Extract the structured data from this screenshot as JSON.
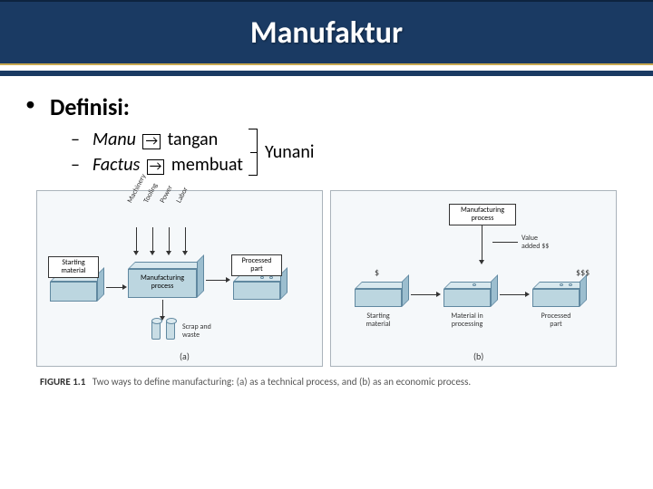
{
  "header": {
    "title": "Manufaktur"
  },
  "bullet": {
    "text": "Definisi:"
  },
  "sub": {
    "items": [
      {
        "dash": "–",
        "word": "Manu",
        "arrow": "→",
        "meaning": "tangan"
      },
      {
        "dash": "–",
        "word": "Factus",
        "arrow": "→",
        "meaning": "membuat"
      }
    ],
    "bracket_label": "Yunani"
  },
  "figure": {
    "caption_bold": "FIGURE 1.1",
    "caption_text": "Two ways to define manufacturing: (a) as a technical process, and (b) as an economic process.",
    "panel_a": {
      "letter": "(a)",
      "start": "Starting\nmaterial",
      "process": "Manufacturing\nprocess",
      "processed": "Processed\npart",
      "scrap": "Scrap and\nwaste",
      "inputs": [
        "Machinery",
        "Tooling",
        "Power",
        "Labor"
      ]
    },
    "panel_b": {
      "letter": "(b)",
      "process": "Manufacturing\nprocess",
      "value": "Value\nadded $$",
      "left_money": "$",
      "right_money": "$$$",
      "start": "Starting\nmaterial",
      "mid": "Material in\nprocessing",
      "out": "Processed\npart"
    }
  },
  "colors": {
    "header_bg": "#1a3a63",
    "accent": "#c8a951",
    "box_fill": "#bcd6e0",
    "box_edge": "#6088a0",
    "panel_border": "#aab3bb"
  }
}
